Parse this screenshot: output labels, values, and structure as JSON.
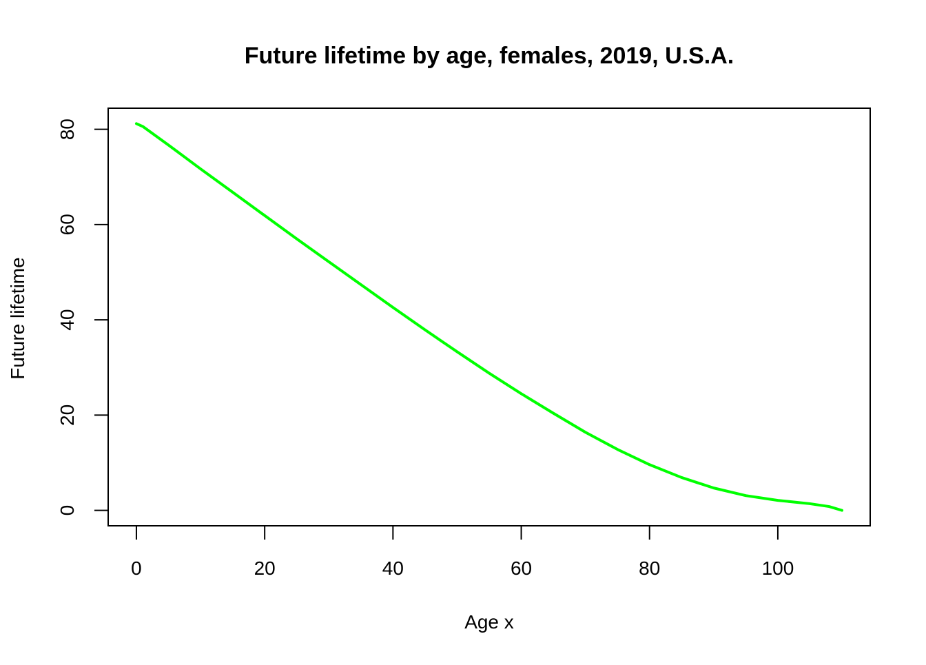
{
  "chart_data": {
    "type": "line",
    "title": "Future lifetime by age, females, 2019, U.S.A.",
    "xlabel": "Age x",
    "ylabel": "Future lifetime",
    "xlim": [
      -4.4,
      114.4
    ],
    "ylim": [
      -3.24,
      84.44
    ],
    "x_ticks": [
      0,
      20,
      40,
      60,
      80,
      100
    ],
    "y_ticks": [
      0,
      20,
      40,
      60,
      80
    ],
    "x_tick_labels": [
      "0",
      "20",
      "40",
      "60",
      "80",
      "100"
    ],
    "y_tick_labels": [
      "0",
      "20",
      "40",
      "60",
      "80"
    ],
    "grid": false,
    "legend": "none",
    "series": [
      {
        "color": "#00ff00",
        "x": [
          0,
          1,
          5,
          10,
          15,
          20,
          25,
          30,
          35,
          40,
          45,
          50,
          55,
          60,
          65,
          70,
          75,
          80,
          85,
          90,
          95,
          100,
          105,
          108,
          110
        ],
        "y": [
          81.2,
          80.6,
          76.7,
          71.7,
          66.8,
          61.9,
          57.0,
          52.2,
          47.4,
          42.6,
          37.9,
          33.3,
          28.8,
          24.5,
          20.4,
          16.4,
          12.8,
          9.6,
          6.9,
          4.7,
          3.1,
          2.1,
          1.4,
          0.8,
          0.0
        ]
      }
    ]
  }
}
